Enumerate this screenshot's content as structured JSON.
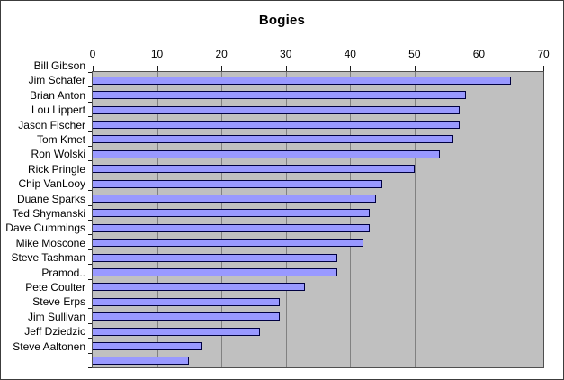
{
  "chart_data": {
    "type": "bar",
    "orientation": "horizontal",
    "title": "Bogies",
    "categories": [
      "Bill Gibson",
      "Jim Schafer",
      "Brian Anton",
      "Lou Lippert",
      "Jason Fischer",
      "Tom Kmet",
      "Ron Wolski",
      "Rick Pringle",
      "Chip VanLooy",
      "Duane Sparks",
      "Ted Shymanski",
      "Dave Cummings",
      "Mike Moscone",
      "Steve Tashman",
      "Pramod..",
      "Pete Coulter",
      "Steve Erps",
      "Jim Sullivan",
      "Jeff Dziedzic",
      "Steve Aaltonen"
    ],
    "values": [
      65,
      58,
      57,
      57,
      56,
      54,
      50,
      45,
      44,
      43,
      43,
      42,
      38,
      38,
      33,
      29,
      29,
      26,
      17,
      15
    ],
    "xlim": [
      0,
      70
    ],
    "x_ticks": [
      0,
      10,
      20,
      30,
      40,
      50,
      60,
      70
    ],
    "grid": "vertical-gridlines",
    "legend": "none",
    "axis_position": "top",
    "colors": {
      "bar_fill": "#9999FF",
      "bar_border": "#000040",
      "plot_background": "#C0C0C0",
      "gridline": "#818181",
      "chart_background": "#FFFFFF",
      "text": "#000000"
    }
  }
}
